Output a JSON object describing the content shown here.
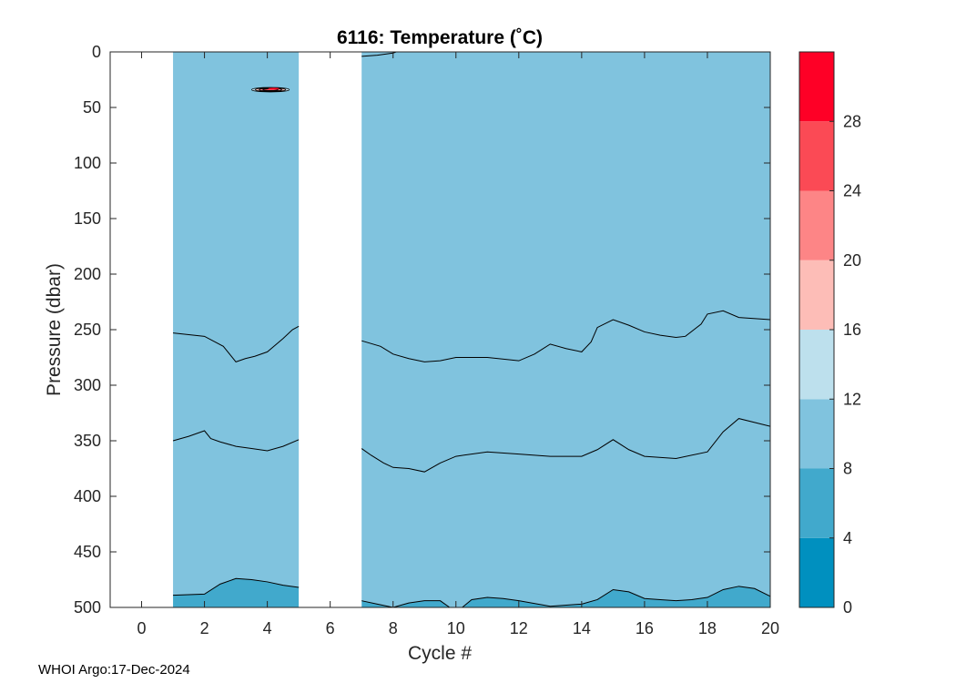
{
  "chart_data": {
    "type": "contour",
    "title": "6116:  Temperature (˚C)",
    "xlabel": "Cycle #",
    "ylabel": "Pressure (dbar)",
    "xlim": [
      -1,
      20
    ],
    "ylim": [
      500,
      0
    ],
    "x_ticks": [
      0,
      2,
      4,
      6,
      8,
      10,
      12,
      14,
      16,
      18,
      20
    ],
    "y_ticks": [
      0,
      50,
      100,
      150,
      200,
      250,
      300,
      350,
      400,
      450,
      500
    ],
    "data_gaps": [
      [
        -1,
        1
      ],
      [
        5,
        7
      ]
    ],
    "fill_levels": [
      {
        "range": [
          0,
          4
        ],
        "color": "#0090bf"
      },
      {
        "range": [
          4,
          8
        ],
        "color": "#41a9cc"
      },
      {
        "range": [
          8,
          12
        ],
        "color": "#80c3de"
      },
      {
        "range": [
          12,
          16
        ],
        "color": "#bde0ed"
      },
      {
        "range": [
          16,
          20
        ],
        "color": "#fdbdb7"
      },
      {
        "range": [
          20,
          24
        ],
        "color": "#fd8586"
      },
      {
        "range": [
          24,
          28
        ],
        "color": "#fb4a55"
      },
      {
        "range": [
          28,
          32
        ],
        "color": "#fe0026"
      }
    ],
    "colorbar": {
      "ticks": [
        0,
        4,
        8,
        12,
        16,
        20,
        24,
        28
      ],
      "min": 0,
      "max": 32
    },
    "contour_lines": [
      {
        "segments": [
          {
            "x": [
              1,
              2,
              2.6,
              3,
              3.3,
              3.6,
              4,
              4.5,
              4.8,
              5
            ],
            "y": [
              253,
              256,
              265,
              279,
              276,
              274,
              270,
              258,
              250,
              247
            ]
          },
          {
            "x": [
              7,
              7.6,
              8,
              8.5,
              9,
              9.5,
              10,
              11,
              12,
              12.5,
              13,
              13.5,
              14,
              14.3,
              14.5,
              15,
              15.5,
              16,
              16.5,
              17,
              17.3,
              17.8,
              18,
              18.5,
              19,
              20
            ],
            "y": [
              260,
              265,
              272,
              276,
              279,
              278,
              275,
              275,
              278,
              272,
              263,
              267,
              270,
              261,
              248,
              241,
              246,
              252,
              255,
              257,
              256,
              245,
              236,
              233,
              239,
              241
            ]
          }
        ]
      },
      {
        "segments": [
          {
            "x": [
              1,
              1.5,
              2,
              2.2,
              2.5,
              3,
              3.5,
              4,
              4.5,
              5
            ],
            "y": [
              350,
              346,
              341,
              348,
              351,
              355,
              357,
              359,
              355,
              349
            ]
          },
          {
            "x": [
              7,
              7.3,
              7.7,
              8,
              8.5,
              9,
              9.5,
              10,
              11,
              12,
              13,
              14,
              14.5,
              15,
              15.5,
              16,
              17,
              18,
              18.5,
              19,
              20
            ],
            "y": [
              357,
              363,
              370,
              374,
              375,
              378,
              370,
              364,
              360,
              362,
              364,
              364,
              358,
              349,
              358,
              364,
              366,
              360,
              342,
              330,
              337
            ]
          }
        ]
      },
      {
        "segments": [
          {
            "x": [
              1,
              2,
              2.5,
              3,
              3.5,
              4,
              4.5,
              5
            ],
            "y": [
              489,
              488,
              479,
              474,
              475,
              477,
              480,
              482
            ]
          },
          {
            "x": [
              7,
              7.5,
              8,
              8.5,
              9,
              9.5,
              9.8
            ],
            "y": [
              494,
              497,
              500,
              496,
              494,
              494,
              500
            ]
          },
          {
            "x": [
              10.2,
              10.5,
              11,
              11.5,
              12,
              13,
              14,
              14.5,
              15,
              15.5,
              16,
              16.5,
              17,
              17.5,
              18,
              18.5,
              19,
              19.5,
              20
            ],
            "y": [
              500,
              493,
              491,
              492,
              494,
              499,
              497,
              493,
              484,
              486,
              492,
              493,
              494,
              493,
              491,
              484,
              481,
              483,
              490
            ]
          }
        ]
      },
      {
        "segments": [
          {
            "x": [
              7,
              7.5,
              8,
              8.1
            ],
            "y": [
              4,
              3,
              1,
              0
            ]
          }
        ]
      }
    ],
    "anomaly": {
      "x": [
        3.5,
        4.2,
        4.7
      ],
      "y": [
        32,
        33,
        36
      ]
    }
  },
  "footer": {
    "text": "WHOI Argo:17-Dec-2024"
  }
}
